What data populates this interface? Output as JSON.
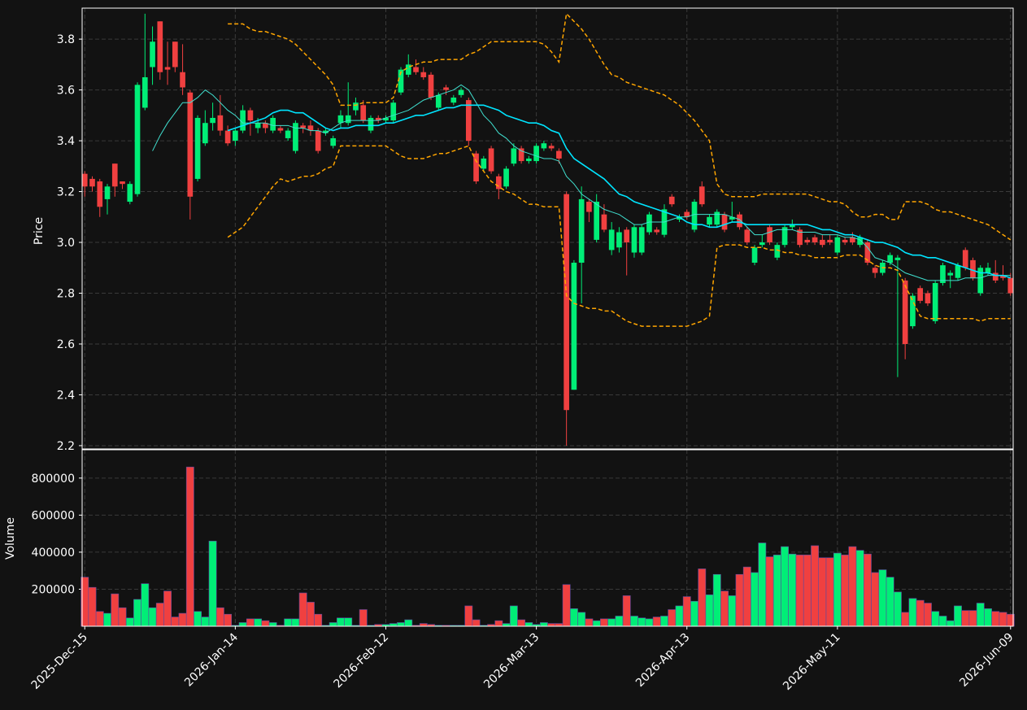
{
  "chart_data": {
    "type": "candlestick",
    "ylabel": "Price",
    "up_color": "#00ee77",
    "down_color": "#f04040",
    "grid": true,
    "x": [
      0,
      1,
      2,
      3,
      4,
      5,
      6,
      7,
      8,
      9,
      10,
      11,
      12,
      13,
      14,
      15,
      16,
      17,
      18,
      19,
      20,
      21,
      22,
      23,
      24,
      25,
      26,
      27,
      28,
      29,
      30,
      31,
      32,
      33,
      34,
      35,
      36,
      37,
      38,
      39,
      40,
      41,
      42,
      43,
      44,
      45,
      46,
      47,
      48,
      49,
      50,
      51,
      52,
      53,
      54,
      55,
      56,
      57,
      58,
      59,
      60,
      61,
      62,
      63,
      64,
      65,
      66,
      67,
      68,
      69,
      70,
      71,
      72,
      73,
      74,
      75,
      76,
      77,
      78,
      79,
      80,
      81,
      82,
      83,
      84,
      85,
      86,
      87,
      88,
      89,
      90,
      91,
      92,
      93,
      94,
      95,
      96,
      97,
      98,
      99,
      100,
      101,
      102,
      103,
      104,
      105,
      106,
      107,
      108,
      109,
      110,
      111,
      112,
      113,
      114,
      115,
      116,
      117,
      118,
      119,
      120,
      121,
      122,
      123
    ],
    "xlim": [
      -0.35,
      123.35
    ],
    "xticks": [
      {
        "value": 0,
        "label": "2025-Dec-15"
      },
      {
        "value": 20,
        "label": "2026-Jan-14"
      },
      {
        "value": 40,
        "label": "2026-Feb-12"
      },
      {
        "value": 60,
        "label": "2026-Mar-13"
      },
      {
        "value": 80,
        "label": "2026-Apr-13"
      },
      {
        "value": 100,
        "label": "2026-May-11"
      },
      {
        "value": 123,
        "label": "2026-Jun-09"
      }
    ],
    "ylim": [
      2.187,
      3.922
    ],
    "yticks": [
      2.2,
      2.4,
      2.6,
      2.8,
      {
        "value": 3,
        "label": "3.0"
      },
      3.2,
      3.4,
      3.6,
      3.8
    ],
    "open": [
      3.27,
      3.25,
      3.24,
      3.17,
      3.31,
      3.24,
      3.16,
      3.19,
      3.53,
      3.69,
      3.87,
      3.69,
      3.79,
      3.67,
      3.59,
      3.25,
      3.39,
      3.47,
      3.5,
      3.44,
      3.4,
      3.44,
      3.52,
      3.45,
      3.47,
      3.44,
      3.45,
      3.41,
      3.36,
      3.46,
      3.46,
      3.44,
      3.43,
      3.38,
      3.47,
      3.47,
      3.52,
      3.54,
      3.44,
      3.49,
      3.48,
      3.48,
      3.59,
      3.66,
      3.69,
      3.67,
      3.66,
      3.53,
      3.61,
      3.55,
      3.58,
      3.56,
      3.35,
      3.29,
      3.37,
      3.26,
      3.22,
      3.31,
      3.37,
      3.32,
      3.32,
      3.37,
      3.38,
      3.36,
      3.19,
      2.42,
      2.92,
      3.16,
      3.01,
      3.11,
      2.97,
      2.98,
      3.05,
      2.96,
      2.96,
      3.04,
      3.05,
      3.03,
      3.18,
      3.09,
      3.12,
      3.05,
      3.22,
      3.07,
      3.07,
      3.11,
      3.09,
      3.11,
      3.05,
      2.92,
      2.99,
      3.06,
      2.94,
      2.99,
      3.06,
      3.05,
      3.01,
      3.02,
      3.01,
      3.01,
      2.96,
      3.01,
      3.02,
      2.99,
      3.0,
      2.9,
      2.88,
      2.92,
      2.93,
      2.85,
      2.67,
      2.82,
      2.8,
      2.69,
      2.84,
      2.87,
      2.86,
      2.97,
      2.93,
      2.8,
      2.88,
      2.88,
      2.87,
      2.86
    ],
    "high": [
      3.28,
      3.26,
      3.25,
      3.23,
      3.31,
      3.24,
      3.24,
      3.63,
      3.9,
      3.85,
      3.87,
      3.79,
      3.79,
      3.78,
      3.6,
      3.5,
      3.52,
      3.55,
      3.58,
      3.46,
      3.45,
      3.54,
      3.53,
      3.49,
      3.48,
      3.5,
      3.46,
      3.45,
      3.48,
      3.47,
      3.48,
      3.45,
      3.45,
      3.42,
      3.52,
      3.63,
      3.57,
      3.56,
      3.5,
      3.5,
      3.5,
      3.56,
      3.69,
      3.74,
      3.72,
      3.69,
      3.67,
      3.59,
      3.62,
      3.58,
      3.61,
      3.57,
      3.36,
      3.34,
      3.38,
      3.27,
      3.3,
      3.39,
      3.38,
      3.34,
      3.39,
      3.4,
      3.39,
      3.37,
      3.2,
      2.93,
      3.22,
      3.17,
      3.19,
      3.15,
      3.08,
      3.06,
      3.06,
      3.07,
      3.07,
      3.12,
      3.06,
      3.15,
      3.19,
      3.11,
      3.13,
      3.17,
      3.24,
      3.11,
      3.13,
      3.12,
      3.16,
      3.12,
      3.06,
      2.99,
      3.03,
      3.07,
      3.0,
      3.07,
      3.09,
      3.06,
      3.02,
      3.03,
      3.03,
      3.03,
      3.03,
      3.02,
      3.04,
      3.03,
      3.01,
      2.91,
      2.93,
      2.96,
      2.95,
      2.86,
      2.8,
      2.83,
      2.81,
      2.85,
      2.92,
      2.89,
      2.92,
      2.98,
      2.94,
      2.91,
      2.92,
      2.93,
      2.91,
      2.88
    ],
    "low": [
      3.18,
      3.2,
      3.1,
      3.11,
      3.18,
      3.21,
      3.15,
      3.18,
      3.52,
      3.62,
      3.64,
      3.62,
      3.67,
      3.58,
      3.09,
      3.24,
      3.38,
      3.44,
      3.42,
      3.38,
      3.38,
      3.43,
      3.42,
      3.43,
      3.43,
      3.43,
      3.43,
      3.4,
      3.35,
      3.43,
      3.42,
      3.35,
      3.42,
      3.37,
      3.45,
      3.46,
      3.5,
      3.47,
      3.43,
      3.47,
      3.47,
      3.47,
      3.58,
      3.65,
      3.66,
      3.64,
      3.56,
      3.52,
      3.58,
      3.54,
      3.57,
      3.38,
      3.23,
      3.28,
      3.27,
      3.17,
      3.21,
      3.3,
      3.31,
      3.31,
      3.31,
      3.36,
      3.36,
      3.31,
      2.2,
      2.42,
      2.76,
      3.08,
      3.0,
      3.04,
      2.95,
      2.96,
      2.87,
      2.94,
      2.95,
      3.03,
      3.03,
      3.02,
      3.14,
      3.08,
      3.09,
      3.04,
      3.14,
      3.06,
      3.06,
      3.04,
      3.08,
      3.05,
      2.99,
      2.91,
      2.98,
      2.99,
      2.93,
      2.98,
      3.05,
      2.98,
      2.99,
      2.99,
      2.98,
      2.99,
      2.95,
      2.99,
      2.99,
      2.98,
      2.91,
      2.86,
      2.87,
      2.91,
      2.47,
      2.54,
      2.66,
      2.76,
      2.75,
      2.68,
      2.83,
      2.82,
      2.85,
      2.89,
      2.85,
      2.79,
      2.87,
      2.84,
      2.85,
      2.79
    ],
    "close": [
      3.22,
      3.22,
      3.14,
      3.22,
      3.22,
      3.23,
      3.23,
      3.62,
      3.65,
      3.79,
      3.67,
      3.68,
      3.69,
      3.61,
      3.18,
      3.49,
      3.47,
      3.49,
      3.44,
      3.39,
      3.44,
      3.52,
      3.48,
      3.47,
      3.45,
      3.49,
      3.44,
      3.44,
      3.47,
      3.45,
      3.44,
      3.36,
      3.44,
      3.41,
      3.5,
      3.5,
      3.55,
      3.48,
      3.49,
      3.48,
      3.49,
      3.55,
      3.68,
      3.7,
      3.67,
      3.65,
      3.57,
      3.58,
      3.6,
      3.57,
      3.6,
      3.4,
      3.24,
      3.33,
      3.28,
      3.21,
      3.29,
      3.37,
      3.32,
      3.33,
      3.38,
      3.39,
      3.37,
      3.33,
      2.34,
      2.92,
      3.17,
      3.12,
      3.16,
      3.05,
      3.05,
      3.04,
      3.0,
      3.06,
      3.06,
      3.11,
      3.04,
      3.13,
      3.15,
      3.1,
      3.1,
      3.16,
      3.15,
      3.1,
      3.12,
      3.05,
      3.1,
      3.06,
      3.0,
      2.98,
      3.0,
      3.0,
      2.99,
      3.06,
      3.07,
      2.99,
      3.0,
      3.0,
      2.99,
      3.0,
      3.02,
      3.0,
      3.0,
      3.02,
      2.92,
      2.88,
      2.92,
      2.95,
      2.94,
      2.6,
      2.79,
      2.77,
      2.76,
      2.84,
      2.91,
      2.88,
      2.91,
      2.9,
      2.86,
      2.9,
      2.9,
      2.85,
      2.86,
      2.8
    ],
    "overlays": [
      {
        "color": "#ffa500",
        "width": 1.5,
        "dash": "5 3",
        "values": [
          null,
          null,
          null,
          null,
          null,
          null,
          null,
          null,
          null,
          null,
          null,
          null,
          null,
          null,
          null,
          null,
          null,
          null,
          null,
          3.86,
          3.86,
          3.86,
          3.84,
          3.83,
          3.83,
          3.82,
          3.81,
          3.8,
          3.78,
          3.75,
          3.72,
          3.69,
          3.66,
          3.62,
          3.54,
          3.54,
          3.54,
          3.55,
          3.55,
          3.55,
          3.55,
          3.57,
          3.67,
          3.69,
          3.7,
          3.71,
          3.71,
          3.72,
          3.72,
          3.72,
          3.72,
          3.74,
          3.75,
          3.77,
          3.79,
          3.79,
          3.79,
          3.79,
          3.79,
          3.79,
          3.79,
          3.78,
          3.75,
          3.71,
          3.9,
          3.87,
          3.84,
          3.8,
          3.75,
          3.7,
          3.66,
          3.65,
          3.63,
          3.62,
          3.61,
          3.6,
          3.59,
          3.58,
          3.56,
          3.54,
          3.51,
          3.48,
          3.44,
          3.4,
          3.23,
          3.19,
          3.18,
          3.18,
          3.18,
          3.18,
          3.19,
          3.19,
          3.19,
          3.19,
          3.19,
          3.19,
          3.19,
          3.18,
          3.17,
          3.16,
          3.16,
          3.15,
          3.12,
          3.1,
          3.1,
          3.11,
          3.11,
          3.09,
          3.09,
          3.16,
          3.16,
          3.16,
          3.15,
          3.13,
          3.12,
          3.12,
          3.11,
          3.1,
          3.09,
          3.08,
          3.07,
          3.05,
          3.03,
          3.01
        ]
      },
      {
        "color": "#ffa500",
        "width": 1.5,
        "dash": "5 3",
        "values": [
          null,
          null,
          null,
          null,
          null,
          null,
          null,
          null,
          null,
          null,
          null,
          null,
          null,
          null,
          null,
          null,
          null,
          null,
          null,
          3.02,
          3.04,
          3.06,
          3.1,
          3.14,
          3.18,
          3.22,
          3.25,
          3.24,
          3.25,
          3.26,
          3.26,
          3.27,
          3.29,
          3.3,
          3.38,
          3.38,
          3.38,
          3.38,
          3.38,
          3.38,
          3.38,
          3.36,
          3.34,
          3.33,
          3.33,
          3.33,
          3.34,
          3.35,
          3.35,
          3.36,
          3.37,
          3.38,
          3.32,
          3.28,
          3.24,
          3.22,
          3.2,
          3.19,
          3.17,
          3.15,
          3.15,
          3.14,
          3.14,
          3.14,
          2.79,
          2.76,
          2.75,
          2.74,
          2.74,
          2.73,
          2.73,
          2.71,
          2.69,
          2.68,
          2.67,
          2.67,
          2.67,
          2.67,
          2.67,
          2.67,
          2.67,
          2.68,
          2.69,
          2.71,
          2.98,
          2.99,
          2.99,
          2.99,
          2.98,
          2.98,
          2.98,
          2.97,
          2.97,
          2.96,
          2.96,
          2.95,
          2.95,
          2.94,
          2.94,
          2.94,
          2.94,
          2.95,
          2.95,
          2.95,
          2.93,
          2.91,
          2.9,
          2.9,
          2.89,
          2.83,
          2.77,
          2.71,
          2.7,
          2.7,
          2.7,
          2.7,
          2.7,
          2.7,
          2.7,
          2.69,
          2.7,
          2.7,
          2.7,
          2.7
        ]
      },
      {
        "color": "#40e0d0",
        "width": 1,
        "values": [
          null,
          null,
          null,
          null,
          null,
          null,
          null,
          null,
          null,
          3.36,
          3.42,
          3.47,
          3.51,
          3.55,
          3.55,
          3.57,
          3.6,
          3.58,
          3.55,
          3.52,
          3.5,
          3.47,
          3.47,
          3.47,
          3.47,
          3.46,
          3.46,
          3.46,
          3.45,
          3.45,
          3.44,
          3.44,
          3.43,
          3.45,
          3.47,
          3.48,
          3.48,
          3.48,
          3.48,
          3.48,
          3.49,
          3.5,
          3.51,
          3.52,
          3.54,
          3.56,
          3.57,
          3.58,
          3.59,
          3.6,
          3.62,
          3.6,
          3.55,
          3.5,
          3.47,
          3.43,
          3.41,
          3.38,
          3.36,
          3.35,
          3.34,
          3.33,
          3.33,
          3.32,
          3.26,
          3.23,
          3.19,
          3.17,
          3.15,
          3.13,
          3.12,
          3.11,
          3.09,
          3.07,
          3.07,
          3.08,
          3.08,
          3.08,
          3.09,
          3.1,
          3.1,
          3.11,
          3.11,
          3.11,
          3.11,
          3.11,
          3.1,
          3.09,
          3.06,
          3.03,
          3.03,
          3.04,
          3.05,
          3.05,
          3.05,
          3.04,
          3.04,
          3.04,
          3.03,
          3.03,
          3.03,
          3.02,
          3.02,
          3.01,
          2.98,
          2.94,
          2.93,
          2.92,
          2.9,
          2.88,
          2.87,
          2.86,
          2.85,
          2.85,
          2.85,
          2.85,
          2.85,
          2.86,
          2.86,
          2.86,
          2.87,
          2.87,
          2.87,
          2.87
        ]
      },
      {
        "color": "#00e5ff",
        "width": 1.6,
        "values": [
          null,
          null,
          null,
          null,
          null,
          null,
          null,
          null,
          null,
          null,
          null,
          null,
          null,
          null,
          null,
          null,
          null,
          null,
          null,
          3.44,
          3.45,
          3.46,
          3.47,
          3.48,
          3.49,
          3.51,
          3.52,
          3.52,
          3.51,
          3.51,
          3.49,
          3.47,
          3.45,
          3.44,
          3.45,
          3.45,
          3.46,
          3.46,
          3.46,
          3.46,
          3.47,
          3.47,
          3.48,
          3.49,
          3.5,
          3.5,
          3.51,
          3.52,
          3.53,
          3.53,
          3.54,
          3.54,
          3.54,
          3.54,
          3.53,
          3.52,
          3.5,
          3.49,
          3.48,
          3.47,
          3.47,
          3.46,
          3.44,
          3.43,
          3.37,
          3.33,
          3.31,
          3.29,
          3.27,
          3.25,
          3.22,
          3.19,
          3.18,
          3.16,
          3.15,
          3.14,
          3.13,
          3.12,
          3.11,
          3.1,
          3.08,
          3.07,
          3.07,
          3.06,
          3.06,
          3.07,
          3.08,
          3.08,
          3.07,
          3.07,
          3.07,
          3.07,
          3.07,
          3.07,
          3.07,
          3.07,
          3.07,
          3.06,
          3.05,
          3.05,
          3.04,
          3.03,
          3.03,
          3.02,
          3.01,
          3.0,
          3.0,
          2.99,
          2.98,
          2.96,
          2.95,
          2.95,
          2.94,
          2.94,
          2.93,
          2.92,
          2.91,
          2.9,
          2.89,
          2.88,
          2.88,
          2.87,
          2.87,
          2.86
        ]
      }
    ],
    "volume": {
      "ylabel": "Volume",
      "ylim": [
        0,
        953000
      ],
      "yticks": [
        200000,
        400000,
        600000,
        800000
      ],
      "values": [
        265000,
        210000,
        80000,
        70000,
        175000,
        100000,
        45000,
        145000,
        230000,
        100000,
        125000,
        190000,
        50000,
        70000,
        860000,
        80000,
        50000,
        460000,
        100000,
        65000,
        5000,
        20000,
        40000,
        40000,
        30000,
        20000,
        5000,
        40000,
        40000,
        180000,
        130000,
        65000,
        5000,
        20000,
        45000,
        45000,
        5000,
        90000,
        5000,
        10000,
        10000,
        15000,
        20000,
        35000,
        5000,
        15000,
        10000,
        5000,
        5000,
        5000,
        5000,
        110000,
        35000,
        5000,
        10000,
        30000,
        15000,
        110000,
        35000,
        20000,
        10000,
        20000,
        15000,
        15000,
        225000,
        95000,
        75000,
        40000,
        30000,
        40000,
        40000,
        55000,
        165000,
        55000,
        45000,
        40000,
        50000,
        55000,
        90000,
        110000,
        160000,
        135000,
        310000,
        170000,
        280000,
        190000,
        165000,
        280000,
        320000,
        290000,
        450000,
        375000,
        385000,
        430000,
        390000,
        385000,
        385000,
        435000,
        370000,
        370000,
        395000,
        385000,
        430000,
        410000,
        390000,
        290000,
        305000,
        265000,
        185000,
        75000,
        150000,
        140000,
        125000,
        80000,
        55000,
        30000,
        110000,
        85000,
        85000,
        125000,
        95000,
        80000,
        75000,
        65000
      ]
    }
  }
}
